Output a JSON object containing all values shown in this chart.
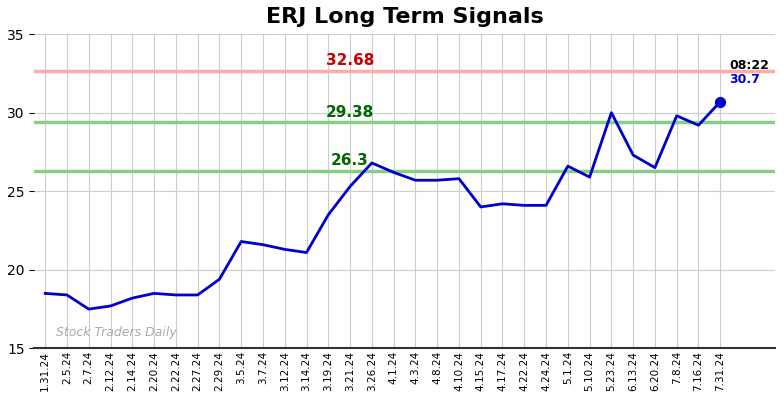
{
  "title": "ERJ Long Term Signals",
  "title_fontsize": 16,
  "background_color": "#ffffff",
  "grid_color": "#cccccc",
  "line_color": "#0000cc",
  "line_width": 2.0,
  "ylim": [
    15,
    35
  ],
  "yticks": [
    15,
    20,
    25,
    30,
    35
  ],
  "hline_red": 32.68,
  "hline_green_upper": 29.38,
  "hline_green_lower": 26.3,
  "hline_red_color": "#ffaaaa",
  "hline_green_color": "#88cc88",
  "label_red_text": "32.68",
  "label_red_color": "#cc0000",
  "label_green_upper_text": "29.38",
  "label_green_upper_color": "#006600",
  "label_green_lower_text": "26.3",
  "label_green_lower_color": "#006600",
  "annotation_time": "08:22",
  "annotation_price": "30.7",
  "watermark": "Stock Traders Daily",
  "watermark_color": "#aaaaaa",
  "x_labels": [
    "1.31.24",
    "2.5.24",
    "2.7.24",
    "2.12.24",
    "2.14.24",
    "2.20.24",
    "2.22.24",
    "2.27.24",
    "2.29.24",
    "3.5.24",
    "3.7.24",
    "3.12.24",
    "3.14.24",
    "3.19.24",
    "3.21.24",
    "3.26.24",
    "4.1.24",
    "4.3.24",
    "4.8.24",
    "4.10.24",
    "4.15.24",
    "4.17.24",
    "4.22.24",
    "4.24.24",
    "5.1.24",
    "5.10.24",
    "5.23.24",
    "6.13.24",
    "6.20.24",
    "7.8.24",
    "7.16.24",
    "7.31.24"
  ],
  "y_values": [
    18.5,
    18.4,
    17.5,
    17.7,
    18.2,
    18.5,
    18.4,
    18.4,
    19.4,
    21.8,
    21.6,
    21.3,
    21.1,
    23.5,
    25.3,
    26.8,
    26.2,
    25.7,
    25.7,
    25.8,
    24.0,
    24.2,
    24.1,
    24.1,
    26.6,
    25.9,
    30.0,
    27.3,
    26.5,
    29.8,
    29.2,
    30.7
  ],
  "red_label_xi": 14,
  "green_upper_label_xi": 14,
  "green_lower_label_xi": 14
}
